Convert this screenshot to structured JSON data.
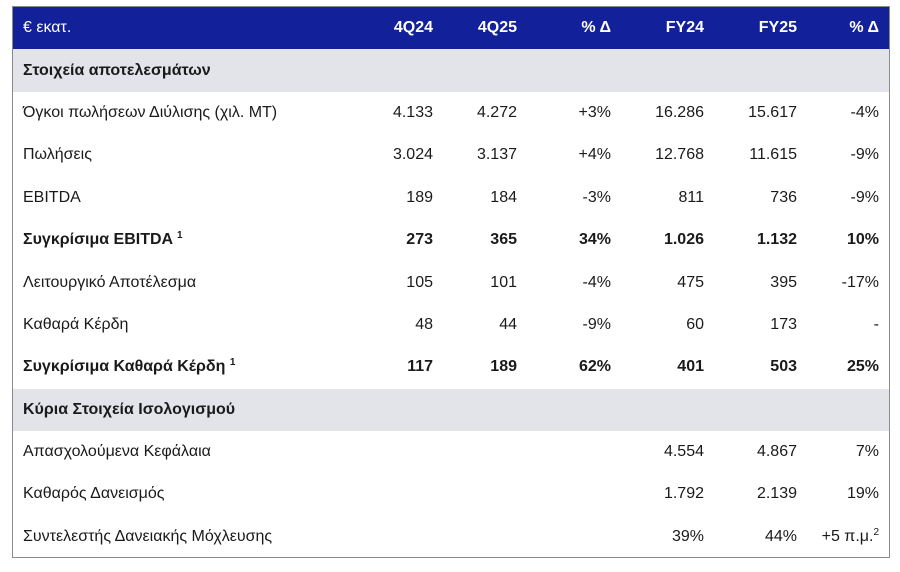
{
  "header": {
    "unit": "€ εκατ.",
    "col_4q24": "4Q24",
    "col_4q25": "4Q25",
    "col_pct_q": "% Δ",
    "col_fy24": "FY24",
    "col_fy25": "FY25",
    "col_pct_fy": "% Δ"
  },
  "section1": {
    "title": "Στοιχεία αποτελεσμάτων"
  },
  "rows1": [
    {
      "label": "Όγκοι πωλήσεων Διύλισης (χιλ. ΜΤ)",
      "sup": "",
      "q24": "4.133",
      "q25": "4.272",
      "pq": "+3%",
      "fy24": "16.286",
      "fy25": "15.617",
      "pfy": "-4%"
    },
    {
      "label": "Πωλήσεις",
      "sup": "",
      "q24": "3.024",
      "q25": "3.137",
      "pq": "+4%",
      "fy24": "12.768",
      "fy25": "11.615",
      "pfy": "-9%"
    },
    {
      "label": "EBITDA",
      "sup": "",
      "q24": "189",
      "q25": "184",
      "pq": "-3%",
      "fy24": "811",
      "fy25": "736",
      "pfy": "-9%"
    },
    {
      "label": "Συγκρίσιμα EBITDA",
      "sup": "1",
      "q24": "273",
      "q25": "365",
      "pq": "34%",
      "fy24": "1.026",
      "fy25": "1.132",
      "pfy": "10%"
    },
    {
      "label": "Λειτουργικό Αποτέλεσμα",
      "sup": "",
      "q24": "105",
      "q25": "101",
      "pq": "-4%",
      "fy24": "475",
      "fy25": "395",
      "pfy": "-17%"
    },
    {
      "label": "Καθαρά Κέρδη",
      "sup": "",
      "q24": "48",
      "q25": "44",
      "pq": "-9%",
      "fy24": "60",
      "fy25": "173",
      "pfy": "-"
    },
    {
      "label": "Συγκρίσιμα Καθαρά Κέρδη",
      "sup": "1",
      "q24": "117",
      "q25": "189",
      "pq": "62%",
      "fy24": "401",
      "fy25": "503",
      "pfy": "25%"
    }
  ],
  "section2": {
    "title": "Κύρια Στοιχεία Ισολογισμού"
  },
  "rows2": [
    {
      "label": "Απασχολούμενα Κεφάλαια",
      "fy24": "4.554",
      "fy25": "4.867",
      "pfy": "7%",
      "pfy_sup": ""
    },
    {
      "label": "Καθαρός Δανεισμός",
      "fy24": "1.792",
      "fy25": "2.139",
      "pfy": "19%",
      "pfy_sup": ""
    },
    {
      "label": "Συντελεστής Δανειακής Μόχλευσης",
      "fy24": "39%",
      "fy25": "44%",
      "pfy": "+5 π.μ.",
      "pfy_sup": "2"
    }
  ]
}
